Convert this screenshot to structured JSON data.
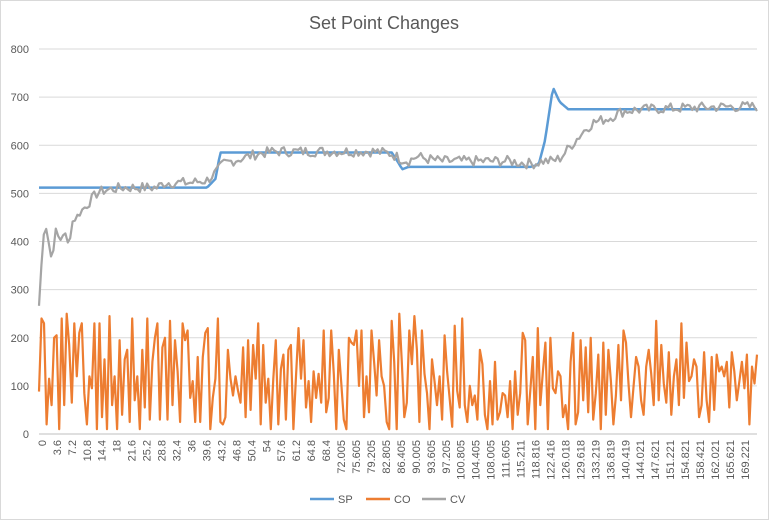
{
  "chart_data": {
    "type": "line",
    "title": "Set Point Changes",
    "xlabel": "",
    "ylabel": "",
    "ylim": [
      0,
      800
    ],
    "yticks": [
      0,
      100,
      200,
      300,
      400,
      500,
      600,
      700,
      800
    ],
    "grid": true,
    "legend_position": "bottom",
    "x_tick_labels": [
      "0",
      "3.6",
      "7.2",
      "10.8",
      "14.4",
      "18",
      "21.6",
      "25.2",
      "28.8",
      "32.4",
      "36",
      "39.6",
      "43.2",
      "46.8",
      "50.4",
      "54",
      "57.6",
      "61.2",
      "64.8",
      "68.4",
      "72.005",
      "75.605",
      "79.205",
      "82.805",
      "86.405",
      "90.005",
      "93.605",
      "97.205",
      "100.805",
      "104.405",
      "108.005",
      "111.605",
      "115.211",
      "118.816",
      "122.416",
      "126.018",
      "129.618",
      "133.219",
      "136.819",
      "140.419",
      "144.021",
      "147.621",
      "151.221",
      "154.821",
      "158.421",
      "162.021",
      "165.621",
      "169.221"
    ],
    "series": [
      {
        "name": "SP",
        "color": "#5b9bd5",
        "anchors": [
          [
            0,
            512
          ],
          [
            15,
            512
          ],
          [
            40,
            512
          ],
          [
            42,
            530
          ],
          [
            43.2,
            585
          ],
          [
            84,
            585
          ],
          [
            85.5,
            565
          ],
          [
            86.5,
            550
          ],
          [
            88,
            555
          ],
          [
            117,
            555
          ],
          [
            119,
            560
          ],
          [
            120.5,
            610
          ],
          [
            122.4,
            720
          ],
          [
            124,
            690
          ],
          [
            126,
            675
          ],
          [
            171,
            675
          ]
        ]
      },
      {
        "name": "CO",
        "color": "#ed7d31",
        "values": [
          88,
          240,
          230,
          20,
          115,
          60,
          200,
          205,
          10,
          240,
          60,
          250,
          185,
          65,
          230,
          120,
          210,
          230,
          85,
          20,
          120,
          95,
          230,
          10,
          230,
          35,
          155,
          10,
          245,
          60,
          120,
          10,
          195,
          40,
          155,
          175,
          25,
          240,
          70,
          120,
          10,
          175,
          55,
          240,
          30,
          150,
          200,
          230,
          30,
          180,
          200,
          30,
          235,
          60,
          195,
          130,
          25,
          230,
          195,
          215,
          75,
          110,
          25,
          160,
          25,
          160,
          210,
          220,
          10,
          75,
          115,
          240,
          25,
          20,
          35,
          175,
          115,
          80,
          120,
          90,
          65,
          180,
          35,
          195,
          50,
          185,
          115,
          230,
          20,
          185,
          65,
          115,
          10,
          115,
          195,
          20,
          135,
          165,
          30,
          175,
          185,
          10,
          120,
          220,
          115,
          195,
          55,
          110,
          25,
          130,
          75,
          125,
          65,
          215,
          45,
          75,
          215,
          125,
          10,
          175,
          105,
          30,
          10,
          200,
          190,
          185,
          215,
          100,
          215,
          35,
          120,
          45,
          215,
          150,
          80,
          195,
          120,
          100,
          25,
          10,
          235,
          150,
          10,
          250,
          150,
          35,
          65,
          215,
          145,
          245,
          175,
          25,
          215,
          125,
          85,
          10,
          155,
          110,
          60,
          120,
          30,
          205,
          130,
          75,
          15,
          225,
          90,
          55,
          240,
          60,
          25,
          100,
          60,
          80,
          30,
          175,
          145,
          40,
          10,
          110,
          20,
          150,
          30,
          45,
          85,
          80,
          35,
          110,
          10,
          130,
          40,
          85,
          210,
          195,
          20,
          90,
          160,
          10,
          220,
          60,
          130,
          190,
          10,
          200,
          95,
          85,
          130,
          120,
          35,
          60,
          10,
          150,
          210,
          20,
          45,
          195,
          70,
          180,
          45,
          200,
          30,
          85,
          165,
          10,
          190,
          40,
          175,
          110,
          20,
          80,
          185,
          70,
          215,
          190,
          105,
          35,
          100,
          160,
          140,
          70,
          40,
          140,
          175,
          125,
          60,
          235,
          70,
          185,
          105,
          65,
          170,
          40,
          120,
          155,
          60,
          230,
          75,
          190,
          110,
          120,
          155,
          140,
          35,
          60,
          170,
          70,
          25,
          160,
          50,
          165,
          130,
          140,
          120,
          150,
          55,
          170,
          130,
          70,
          110,
          150,
          95,
          165,
          20,
          140,
          105,
          165
        ]
      },
      {
        "name": "CV",
        "color": "#a5a5a5",
        "anchors": [
          [
            0,
            265
          ],
          [
            1,
            410
          ],
          [
            1.5,
            440
          ],
          [
            3,
            360
          ],
          [
            4,
            420
          ],
          [
            5,
            400
          ],
          [
            6,
            420
          ],
          [
            7,
            390
          ],
          [
            8,
            440
          ],
          [
            10,
            460
          ],
          [
            12,
            480
          ],
          [
            14,
            500
          ],
          [
            16,
            505
          ],
          [
            20,
            510
          ],
          [
            24,
            510
          ],
          [
            28,
            510
          ],
          [
            30,
            520
          ],
          [
            32,
            520
          ],
          [
            36,
            520
          ],
          [
            40,
            525
          ],
          [
            42,
            540
          ],
          [
            44,
            560
          ],
          [
            46,
            565
          ],
          [
            48,
            570
          ],
          [
            52,
            580
          ],
          [
            56,
            585
          ],
          [
            60,
            585
          ],
          [
            64,
            585
          ],
          [
            68,
            585
          ],
          [
            72,
            585
          ],
          [
            76,
            585
          ],
          [
            80,
            585
          ],
          [
            84,
            580
          ],
          [
            86,
            570
          ],
          [
            88,
            565
          ],
          [
            90,
            575
          ],
          [
            92,
            570
          ],
          [
            96,
            565
          ],
          [
            100,
            565
          ],
          [
            104,
            565
          ],
          [
            108,
            565
          ],
          [
            112,
            565
          ],
          [
            116,
            560
          ],
          [
            118,
            560
          ],
          [
            120,
            565
          ],
          [
            122,
            565
          ],
          [
            124,
            570
          ],
          [
            126,
            590
          ],
          [
            128,
            610
          ],
          [
            130,
            630
          ],
          [
            132,
            645
          ],
          [
            134,
            650
          ],
          [
            136,
            655
          ],
          [
            138,
            665
          ],
          [
            140,
            670
          ],
          [
            144,
            672
          ],
          [
            148,
            674
          ],
          [
            152,
            675
          ],
          [
            156,
            676
          ],
          [
            160,
            677
          ],
          [
            164,
            678
          ],
          [
            168,
            678
          ],
          [
            171,
            678
          ]
        ],
        "noise_amplitude": 18
      }
    ]
  }
}
